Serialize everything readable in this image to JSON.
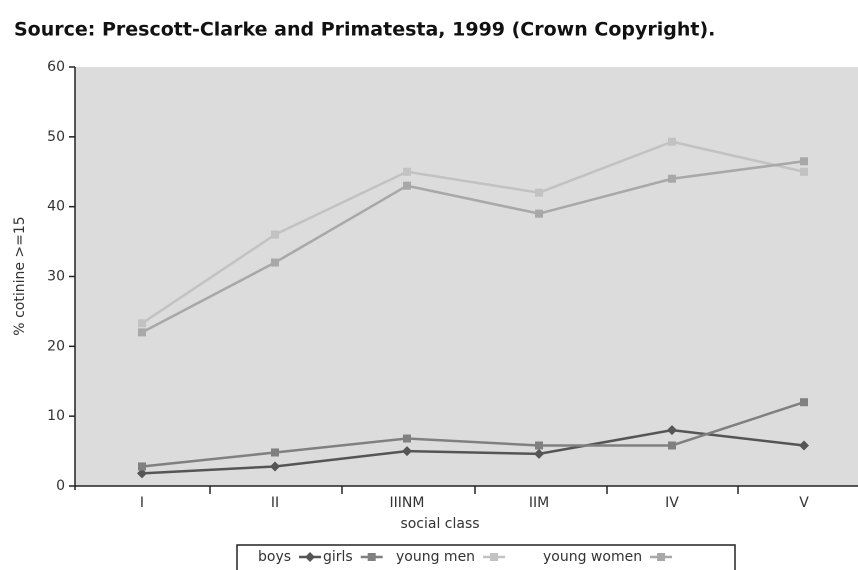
{
  "chart_data": {
    "type": "line",
    "subtitle": "Source: Prescott-Clarke and Primatesta, 1999 (Crown Copyright).",
    "x_label": "social class",
    "y_label": "% cotinine >=15",
    "categories": [
      "I",
      "II",
      "IIINM",
      "IIM",
      "IV",
      "V"
    ],
    "ylim": [
      0,
      60
    ],
    "yticks": [
      0,
      10,
      20,
      30,
      40,
      50,
      60
    ],
    "series": [
      {
        "name": "boys",
        "color": "#555555",
        "marker": "diamond",
        "values": [
          1.8,
          2.8,
          5,
          4.6,
          8,
          5.8
        ]
      },
      {
        "name": "girls",
        "color": "#808080",
        "marker": "square",
        "values": [
          2.8,
          4.8,
          6.8,
          5.8,
          5.8,
          12
        ]
      },
      {
        "name": "young men",
        "color": "#c2c2c2",
        "marker": "square",
        "values": [
          23.3,
          36,
          45,
          42,
          49.3,
          45
        ]
      },
      {
        "name": "young women",
        "color": "#a8a8a8",
        "marker": "square",
        "values": [
          22,
          32,
          43,
          39,
          44,
          46.5
        ]
      }
    ],
    "legend": "bottom"
  }
}
